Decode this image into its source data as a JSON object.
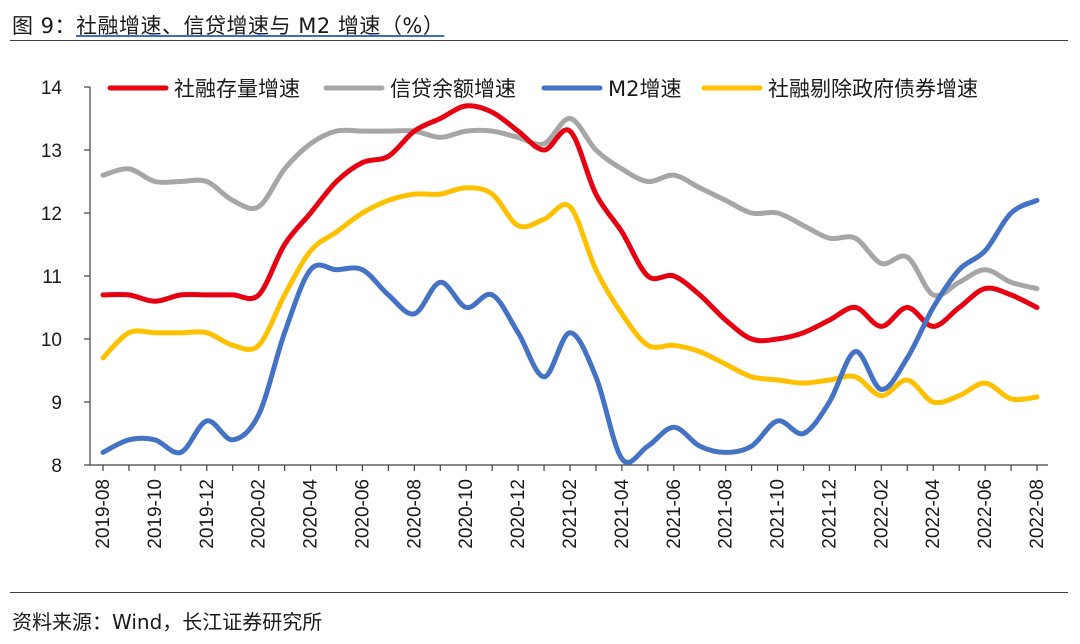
{
  "figure": {
    "label": "图 9：",
    "title": "社融增速、信贷增速与 M2 增速（%）",
    "source": "资料来源：Wind，长江证券研究所"
  },
  "chart_data": {
    "type": "line",
    "title": "社融增速、信贷增速与 M2 增速（%）",
    "xlabel": "",
    "ylabel": "",
    "ylim": [
      8,
      14
    ],
    "yticks": [
      8,
      9,
      10,
      11,
      12,
      13,
      14
    ],
    "grid": false,
    "legend_position": "top",
    "x": [
      "2019-08",
      "2019-09",
      "2019-10",
      "2019-11",
      "2019-12",
      "2020-01",
      "2020-02",
      "2020-03",
      "2020-04",
      "2020-05",
      "2020-06",
      "2020-07",
      "2020-08",
      "2020-09",
      "2020-10",
      "2020-11",
      "2020-12",
      "2021-01",
      "2021-02",
      "2021-03",
      "2021-04",
      "2021-05",
      "2021-06",
      "2021-07",
      "2021-08",
      "2021-09",
      "2021-10",
      "2021-11",
      "2021-12",
      "2022-01",
      "2022-02",
      "2022-03",
      "2022-04",
      "2022-05",
      "2022-06",
      "2022-07",
      "2022-08"
    ],
    "xtick_labels": [
      "2019-08",
      "2019-10",
      "2019-12",
      "2020-02",
      "2020-04",
      "2020-06",
      "2020-08",
      "2020-10",
      "2020-12",
      "2021-02",
      "2021-04",
      "2021-06",
      "2021-08",
      "2021-10",
      "2021-12",
      "2022-02",
      "2022-04",
      "2022-06",
      "2022-08"
    ],
    "series": [
      {
        "name": "社融存量增速",
        "color": "#e60012",
        "values": [
          10.7,
          10.7,
          10.6,
          10.7,
          10.7,
          10.7,
          10.7,
          11.5,
          12.0,
          12.5,
          12.8,
          12.9,
          13.3,
          13.5,
          13.7,
          13.6,
          13.3,
          13.0,
          13.3,
          12.3,
          11.7,
          11.0,
          11.0,
          10.7,
          10.3,
          10.0,
          10.0,
          10.1,
          10.3,
          10.5,
          10.2,
          10.5,
          10.2,
          10.5,
          10.8,
          10.7,
          10.5
        ]
      },
      {
        "name": "信贷余额增速",
        "color": "#a6a6a6",
        "values": [
          12.6,
          12.7,
          12.5,
          12.5,
          12.5,
          12.2,
          12.1,
          12.7,
          13.1,
          13.3,
          13.3,
          13.3,
          13.3,
          13.2,
          13.3,
          13.3,
          13.2,
          13.1,
          13.5,
          13.0,
          12.7,
          12.5,
          12.6,
          12.4,
          12.2,
          12.0,
          12.0,
          11.8,
          11.6,
          11.6,
          11.2,
          11.3,
          10.7,
          10.9,
          11.1,
          10.9,
          10.8
        ]
      },
      {
        "name": "M2增速",
        "color": "#4472c4",
        "values": [
          8.2,
          8.4,
          8.4,
          8.2,
          8.7,
          8.4,
          8.8,
          10.1,
          11.1,
          11.1,
          11.1,
          10.7,
          10.4,
          10.9,
          10.5,
          10.7,
          10.1,
          9.4,
          10.1,
          9.4,
          8.1,
          8.3,
          8.6,
          8.3,
          8.2,
          8.3,
          8.7,
          8.5,
          9.0,
          9.8,
          9.2,
          9.7,
          10.5,
          11.1,
          11.4,
          12.0,
          12.2
        ]
      },
      {
        "name": "社融剔除政府债券增速",
        "color": "#ffc000",
        "values": [
          9.7,
          10.1,
          10.1,
          10.1,
          10.1,
          9.9,
          9.9,
          10.7,
          11.4,
          11.7,
          12.0,
          12.2,
          12.3,
          12.3,
          12.4,
          12.3,
          11.8,
          11.9,
          12.1,
          11.1,
          10.4,
          9.9,
          9.9,
          9.8,
          9.6,
          9.4,
          9.35,
          9.3,
          9.35,
          9.4,
          9.1,
          9.35,
          9.0,
          9.1,
          9.3,
          9.05,
          9.08
        ]
      }
    ]
  }
}
